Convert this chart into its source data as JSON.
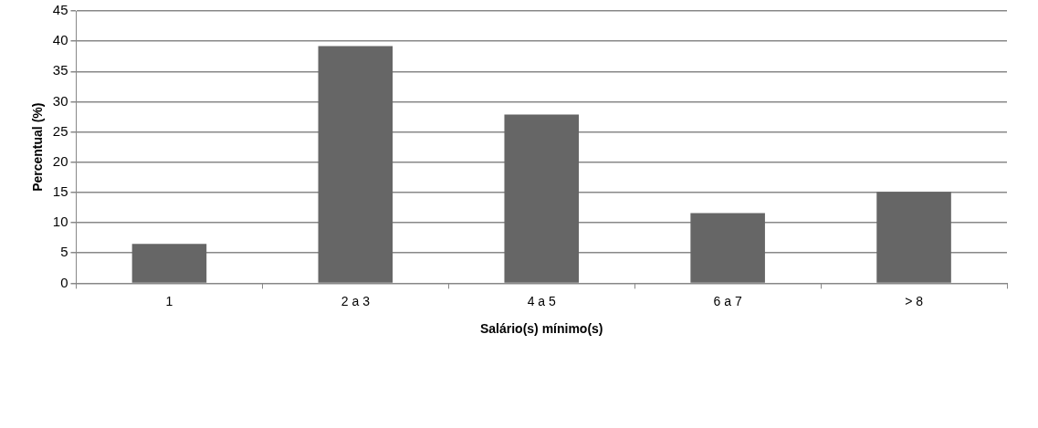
{
  "chart_data": {
    "type": "bar",
    "xlabel": "Salário(s) mínimo(s)",
    "ylabel": "Percentual (%)",
    "categories": [
      "1",
      "2 a 3",
      "4 a 5",
      "6 a 7",
      "> 8"
    ],
    "values": [
      6.5,
      39.2,
      27.9,
      11.6,
      15.1
    ],
    "color": "#666666",
    "ylim": [
      0,
      45
    ],
    "yticks": [
      0,
      5,
      10,
      15,
      20,
      25,
      30,
      35,
      40,
      45
    ],
    "grid": "y",
    "legend": false
  }
}
